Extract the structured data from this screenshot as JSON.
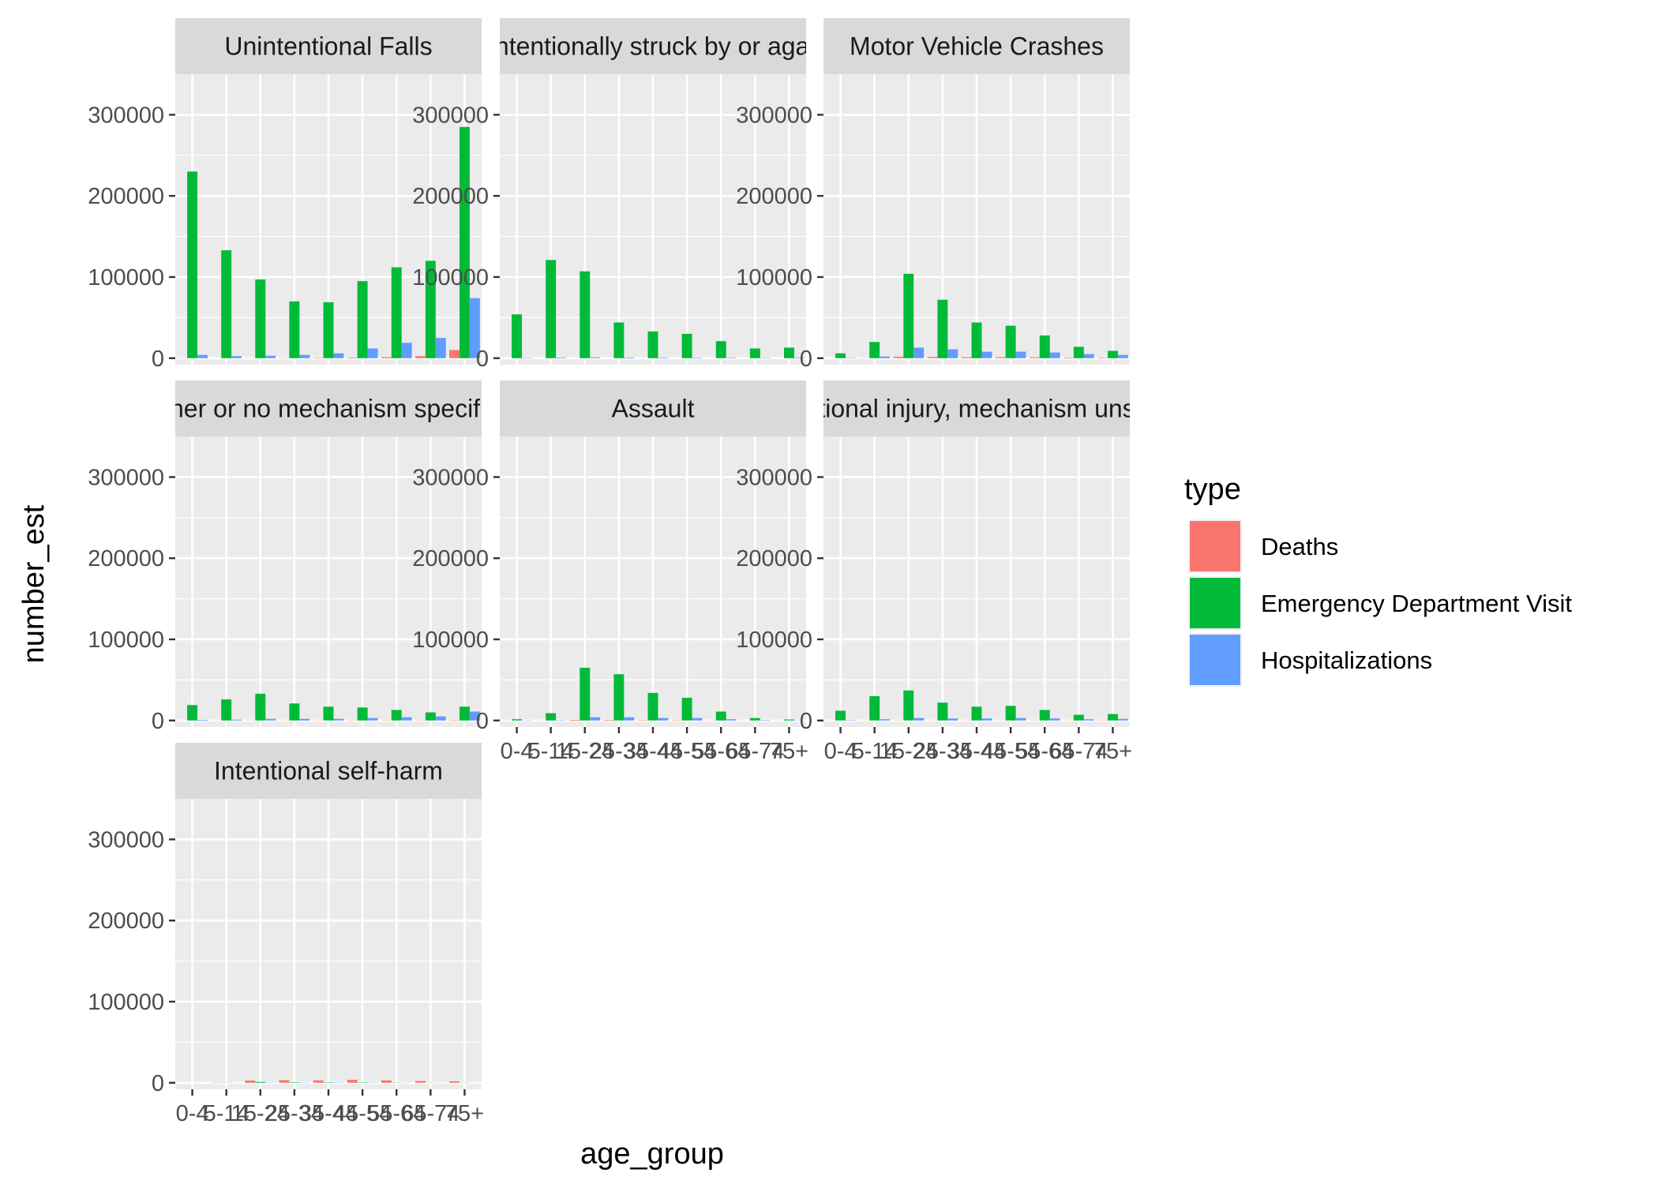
{
  "chart_data": {
    "type": "bar",
    "xlabel": "age_group",
    "ylabel": "number_est",
    "ylim": [
      -8000,
      350000
    ],
    "y_ticks": [
      0,
      100000,
      200000,
      300000
    ],
    "y_tick_labels": [
      "0",
      "100000",
      "200000",
      "300000"
    ],
    "categories": [
      "0-4",
      "5-14",
      "15-24",
      "25-34",
      "35-44",
      "45-54",
      "55-64",
      "65-74",
      "75+"
    ],
    "grid": true,
    "legend_position": "right",
    "legend_title": "type",
    "series_types": [
      {
        "name": "Deaths",
        "color": "#F8766D"
      },
      {
        "name": "Emergency Department Visit",
        "color": "#00BA38"
      },
      {
        "name": "Hospitalizations",
        "color": "#619CFF"
      }
    ],
    "panels": [
      {
        "title": "Unintentional Falls",
        "values": {
          "Deaths": [
            200,
            100,
            200,
            300,
            500,
            800,
            1300,
            2500,
            10000
          ],
          "Emergency Department Visit": [
            230000,
            133000,
            97000,
            70000,
            69000,
            95000,
            112000,
            120000,
            285000
          ],
          "Hospitalizations": [
            4000,
            2500,
            3000,
            4000,
            6000,
            12000,
            19000,
            25000,
            74000
          ]
        }
      },
      {
        "title": "Unintentionally struck by or against",
        "values": {
          "Deaths": [
            0,
            0,
            0,
            0,
            0,
            0,
            0,
            0,
            0
          ],
          "Emergency Department Visit": [
            54000,
            121000,
            107000,
            44000,
            33000,
            30000,
            21000,
            12000,
            13000
          ],
          "Hospitalizations": [
            500,
            800,
            1000,
            800,
            700,
            700,
            600,
            500,
            800
          ]
        }
      },
      {
        "title": "Motor Vehicle Crashes",
        "values": {
          "Deaths": [
            100,
            200,
            1800,
            1500,
            1200,
            1200,
            1100,
            700,
            600
          ],
          "Emergency Department Visit": [
            6000,
            20000,
            104000,
            72000,
            44000,
            40000,
            28000,
            14000,
            9000
          ],
          "Hospitalizations": [
            500,
            2000,
            13000,
            11000,
            8000,
            8000,
            7000,
            5000,
            4000
          ]
        }
      },
      {
        "title": "Other or no mechanism specified",
        "values": {
          "Deaths": [
            100,
            100,
            200,
            200,
            200,
            300,
            300,
            300,
            500
          ],
          "Emergency Department Visit": [
            19000,
            26000,
            33000,
            21000,
            17000,
            16000,
            13000,
            10000,
            17000
          ],
          "Hospitalizations": [
            800,
            1000,
            2000,
            2000,
            2000,
            3000,
            4000,
            5000,
            11000
          ]
        }
      },
      {
        "title": "Assault",
        "values": {
          "Deaths": [
            100,
            100,
            800,
            700,
            500,
            400,
            200,
            100,
            100
          ],
          "Emergency Department Visit": [
            1500,
            9000,
            65000,
            57000,
            34000,
            28000,
            11000,
            3000,
            1200
          ],
          "Hospitalizations": [
            300,
            400,
            4000,
            4000,
            3000,
            3000,
            1500,
            500,
            300
          ]
        }
      },
      {
        "title": "Unintentional injury, mechanism unspecified",
        "values": {
          "Deaths": [
            100,
            100,
            200,
            200,
            200,
            200,
            200,
            200,
            300
          ],
          "Emergency Department Visit": [
            12000,
            30000,
            37000,
            22000,
            17000,
            18000,
            13000,
            7000,
            8000
          ],
          "Hospitalizations": [
            500,
            1500,
            3000,
            2500,
            2500,
            3000,
            2500,
            1500,
            2000
          ]
        }
      },
      {
        "title": "Intentional self-harm",
        "values": {
          "Deaths": [
            0,
            300,
            2800,
            3200,
            3000,
            3700,
            3000,
            2200,
            1800
          ],
          "Emergency Department Visit": [
            0,
            200,
            1000,
            600,
            500,
            400,
            300,
            200,
            200
          ],
          "Hospitalizations": [
            0,
            100,
            300,
            300,
            300,
            300,
            200,
            150,
            100
          ]
        }
      }
    ]
  }
}
